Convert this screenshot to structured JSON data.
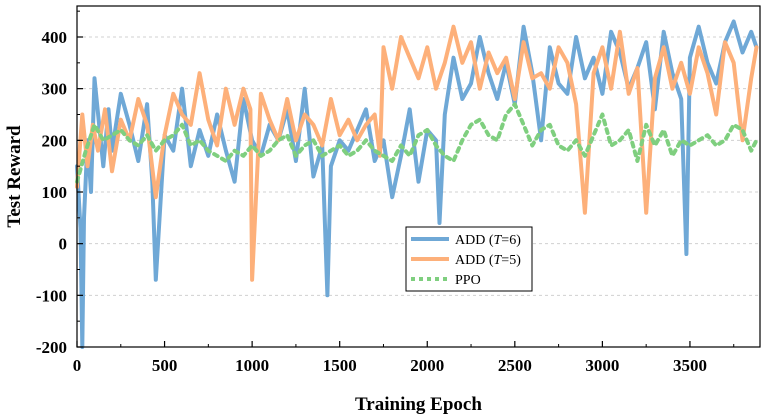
{
  "chart_data": {
    "type": "line",
    "xlabel": "Training Epoch",
    "ylabel": "Test Reward",
    "xlim": [
      0,
      3900
    ],
    "ylim": [
      -200,
      460
    ],
    "xticks": [
      0,
      500,
      1000,
      1500,
      2000,
      2500,
      3000,
      3500
    ],
    "yticks": [
      -200,
      -100,
      0,
      100,
      200,
      300,
      400
    ],
    "xtick_labels": [
      "0",
      "500",
      "1000",
      "1500",
      "2000",
      "2500",
      "3000",
      "3500"
    ],
    "ytick_labels": [
      "-200",
      "-100",
      "0",
      "100",
      "200",
      "300",
      "400"
    ],
    "grid": "horizontal dashed",
    "legend_position": "center",
    "series": [
      {
        "name": "ADD (T=6)",
        "legend_main": "ADD (",
        "legend_italic": "T",
        "legend_rest": "=6)",
        "color": "#6fa8d6",
        "style": "solid",
        "x": [
          0,
          20,
          30,
          40,
          60,
          80,
          100,
          150,
          180,
          200,
          250,
          300,
          350,
          400,
          430,
          450,
          500,
          550,
          600,
          650,
          700,
          750,
          800,
          850,
          900,
          950,
          1000,
          1050,
          1100,
          1150,
          1200,
          1250,
          1300,
          1350,
          1400,
          1430,
          1450,
          1500,
          1550,
          1600,
          1650,
          1700,
          1750,
          1800,
          1850,
          1900,
          1950,
          2000,
          2050,
          2070,
          2100,
          2150,
          2200,
          2250,
          2300,
          2350,
          2400,
          2450,
          2500,
          2550,
          2600,
          2650,
          2700,
          2750,
          2800,
          2850,
          2900,
          2950,
          3000,
          3050,
          3100,
          3150,
          3200,
          3250,
          3300,
          3350,
          3400,
          3450,
          3480,
          3500,
          3550,
          3600,
          3650,
          3700,
          3750,
          3800,
          3850,
          3880
        ],
        "y": [
          150,
          30,
          -200,
          50,
          200,
          100,
          320,
          150,
          260,
          180,
          290,
          230,
          160,
          270,
          120,
          -70,
          210,
          180,
          300,
          150,
          220,
          170,
          250,
          180,
          120,
          280,
          200,
          170,
          230,
          200,
          260,
          160,
          300,
          130,
          190,
          -100,
          150,
          200,
          180,
          220,
          260,
          160,
          200,
          90,
          170,
          260,
          120,
          220,
          200,
          40,
          250,
          360,
          280,
          310,
          400,
          330,
          280,
          350,
          270,
          420,
          330,
          200,
          380,
          310,
          290,
          400,
          320,
          360,
          290,
          410,
          370,
          300,
          340,
          390,
          260,
          410,
          330,
          280,
          -20,
          360,
          420,
          350,
          310,
          390,
          430,
          370,
          410,
          380
        ]
      },
      {
        "name": "ADD (T=5)",
        "legend_main": "ADD (",
        "legend_italic": "T",
        "legend_rest": "=5)",
        "color": "#fdb07a",
        "style": "solid",
        "x": [
          0,
          30,
          60,
          90,
          120,
          160,
          200,
          250,
          300,
          350,
          400,
          450,
          500,
          550,
          600,
          650,
          700,
          750,
          800,
          850,
          900,
          950,
          990,
          1000,
          1050,
          1100,
          1150,
          1200,
          1250,
          1300,
          1350,
          1400,
          1450,
          1500,
          1550,
          1600,
          1650,
          1700,
          1730,
          1750,
          1800,
          1850,
          1900,
          1950,
          2000,
          2050,
          2100,
          2150,
          2200,
          2250,
          2300,
          2350,
          2400,
          2450,
          2500,
          2550,
          2600,
          2650,
          2700,
          2750,
          2800,
          2850,
          2900,
          2950,
          3000,
          3050,
          3100,
          3150,
          3200,
          3250,
          3300,
          3350,
          3400,
          3450,
          3500,
          3550,
          3600,
          3650,
          3700,
          3750,
          3800,
          3850,
          3880
        ],
        "y": [
          110,
          250,
          150,
          230,
          180,
          260,
          140,
          240,
          200,
          280,
          230,
          90,
          210,
          290,
          250,
          230,
          330,
          240,
          190,
          300,
          230,
          300,
          260,
          -70,
          290,
          240,
          200,
          280,
          200,
          250,
          230,
          190,
          280,
          210,
          240,
          200,
          230,
          250,
          170,
          380,
          300,
          400,
          360,
          320,
          380,
          300,
          350,
          420,
          350,
          390,
          300,
          370,
          330,
          360,
          280,
          390,
          320,
          330,
          300,
          380,
          350,
          270,
          60,
          330,
          380,
          300,
          410,
          290,
          340,
          60,
          320,
          380,
          300,
          350,
          290,
          380,
          330,
          250,
          390,
          350,
          200,
          320,
          380
        ]
      },
      {
        "name": "PPO",
        "legend_main": "PPO",
        "legend_italic": "",
        "legend_rest": "",
        "color": "#7fcf7f",
        "style": "dotted",
        "x": [
          0,
          50,
          100,
          150,
          200,
          250,
          300,
          350,
          400,
          450,
          500,
          550,
          600,
          650,
          700,
          750,
          800,
          850,
          900,
          950,
          1000,
          1050,
          1100,
          1150,
          1200,
          1250,
          1300,
          1350,
          1400,
          1450,
          1500,
          1550,
          1600,
          1650,
          1700,
          1750,
          1800,
          1850,
          1900,
          1950,
          2000,
          2050,
          2100,
          2150,
          2200,
          2250,
          2300,
          2350,
          2400,
          2450,
          2500,
          2550,
          2600,
          2650,
          2700,
          2750,
          2800,
          2850,
          2900,
          2950,
          3000,
          3050,
          3100,
          3150,
          3200,
          3250,
          3300,
          3350,
          3400,
          3450,
          3500,
          3550,
          3600,
          3650,
          3700,
          3750,
          3800,
          3850,
          3880
        ],
        "y": [
          120,
          180,
          230,
          200,
          210,
          220,
          200,
          190,
          210,
          180,
          200,
          210,
          230,
          190,
          200,
          180,
          170,
          160,
          180,
          170,
          190,
          170,
          180,
          200,
          210,
          170,
          190,
          200,
          170,
          180,
          190,
          170,
          180,
          200,
          180,
          170,
          160,
          190,
          170,
          210,
          220,
          190,
          170,
          160,
          200,
          230,
          240,
          210,
          200,
          250,
          270,
          230,
          190,
          220,
          230,
          190,
          180,
          200,
          170,
          210,
          250,
          190,
          200,
          220,
          160,
          230,
          190,
          220,
          170,
          200,
          190,
          200,
          210,
          190,
          200,
          230,
          220,
          180,
          200
        ]
      }
    ]
  }
}
